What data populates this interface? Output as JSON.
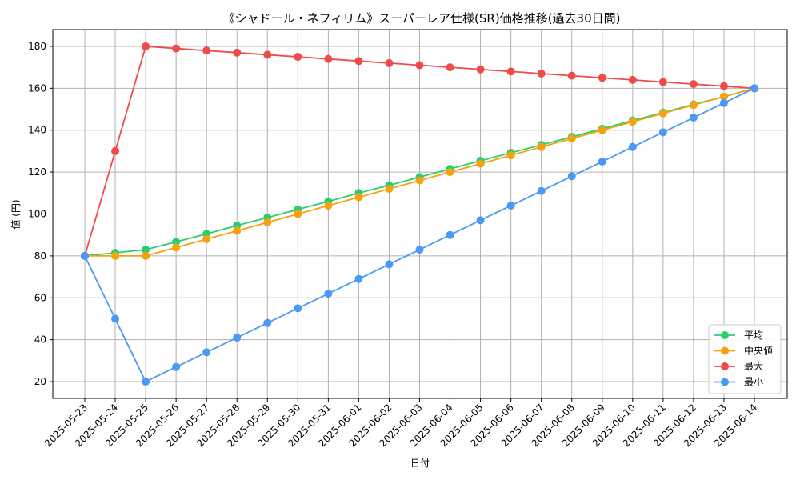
{
  "chart_data": {
    "type": "line",
    "title": "《シャドール・ネフィリム》スーパーレア仕様(SR)価格推移(過去30日間)",
    "xlabel": "日付",
    "ylabel": "値 (円)",
    "ylim": [
      12,
      188
    ],
    "yticks": [
      20,
      40,
      60,
      80,
      100,
      120,
      140,
      160,
      180
    ],
    "grid": true,
    "legend_position": "bottom-right",
    "categories": [
      "2025-05-23",
      "2025-05-24",
      "2025-05-25",
      "2025-05-26",
      "2025-05-27",
      "2025-05-28",
      "2025-05-29",
      "2025-05-30",
      "2025-05-31",
      "2025-06-01",
      "2025-06-02",
      "2025-06-03",
      "2025-06-04",
      "2025-06-05",
      "2025-06-06",
      "2025-06-07",
      "2025-06-08",
      "2025-06-09",
      "2025-06-10",
      "2025-06-11",
      "2025-06-12",
      "2025-06-13",
      "2025-06-14"
    ],
    "series": [
      {
        "name": "平均",
        "color": "#2ecc71",
        "values": [
          80,
          81.5,
          83,
          86.7,
          90.5,
          94.5,
          98.3,
          102.2,
          106,
          110,
          113.7,
          117.6,
          121.5,
          125.4,
          129.2,
          133,
          136.8,
          140.7,
          144.6,
          148.4,
          152.3,
          156,
          160
        ]
      },
      {
        "name": "中央値",
        "color": "#f5a20f",
        "values": [
          80,
          80,
          80,
          84,
          88,
          92,
          96,
          100,
          104,
          108,
          112,
          116,
          120,
          124,
          128,
          132,
          136,
          140,
          144,
          148,
          152,
          156,
          160
        ]
      },
      {
        "name": "最大",
        "color": "#ef4b4b",
        "values": [
          80,
          130,
          180,
          179,
          178,
          177,
          176,
          175,
          174,
          173,
          172,
          171,
          170,
          169,
          168,
          167,
          166,
          165,
          164,
          163,
          162,
          161,
          160
        ]
      },
      {
        "name": "最小",
        "color": "#4a9af5",
        "values": [
          80,
          50,
          20,
          27,
          34,
          41,
          48,
          55,
          62,
          69,
          76,
          83,
          90,
          97,
          104,
          111,
          118,
          125,
          132,
          139,
          146,
          153,
          160
        ]
      }
    ]
  }
}
